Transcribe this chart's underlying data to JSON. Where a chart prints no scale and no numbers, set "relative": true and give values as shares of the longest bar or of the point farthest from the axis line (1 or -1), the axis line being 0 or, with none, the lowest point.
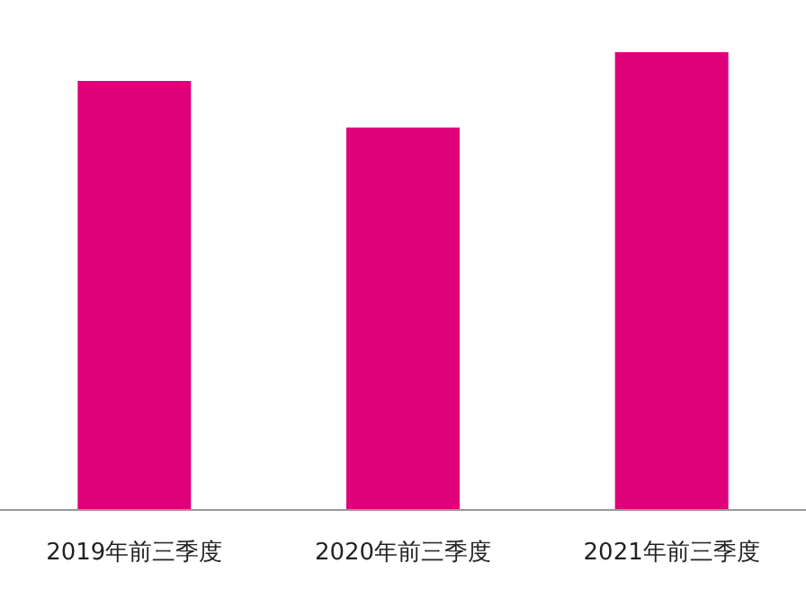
{
  "chart_data": {
    "type": "bar",
    "relative": true,
    "categories": [
      "2019年前三季度",
      "2020年前三季度",
      "2021年前三季度"
    ],
    "values": [
      0.937,
      0.835,
      1
    ],
    "color": "#e0007a"
  }
}
